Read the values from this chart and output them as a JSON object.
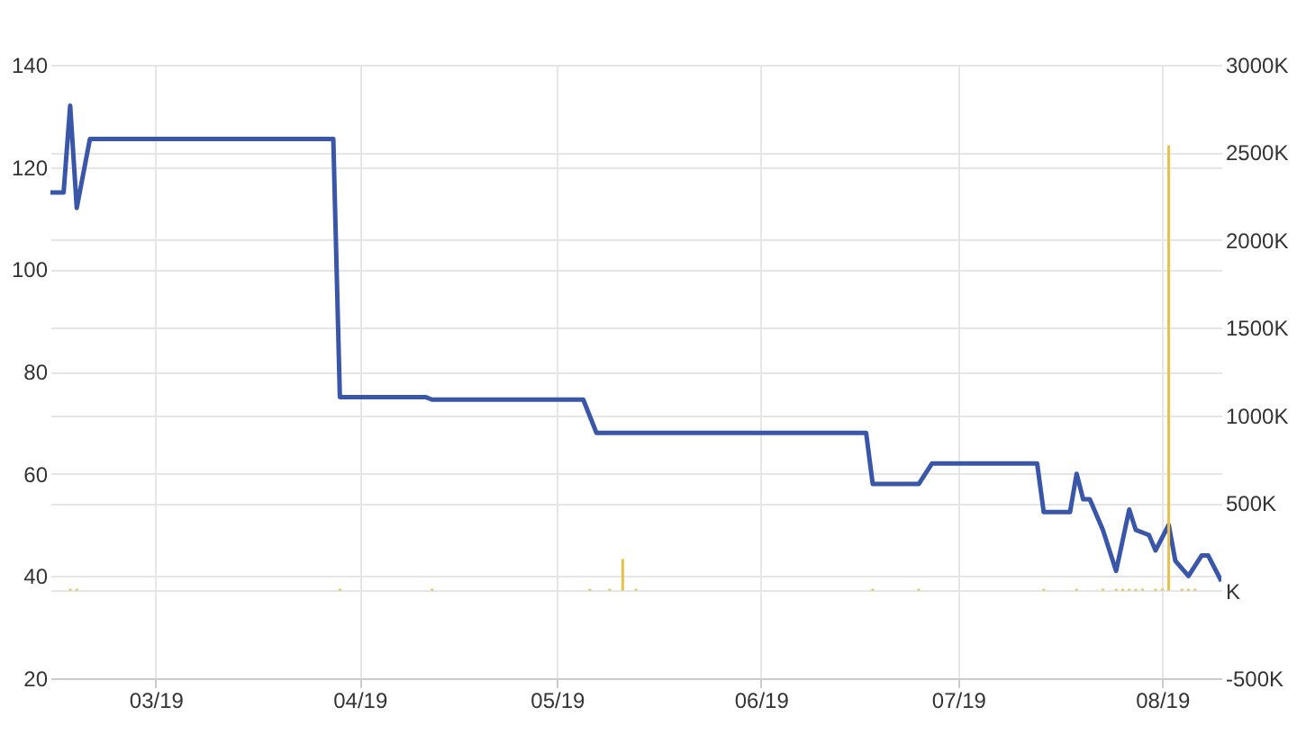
{
  "chart_data": {
    "type": "line",
    "xlim": [
      "2019-02-13",
      "2019-08-10"
    ],
    "xticks": [
      {
        "value": "2019-03-01",
        "label": "03/19"
      },
      {
        "value": "2019-04-01",
        "label": "04/19"
      },
      {
        "value": "2019-05-01",
        "label": "05/19"
      },
      {
        "value": "2019-06-01",
        "label": "06/19"
      },
      {
        "value": "2019-07-01",
        "label": "07/19"
      },
      {
        "value": "2019-08-01",
        "label": "08/19"
      }
    ],
    "ylim": [
      20,
      140
    ],
    "yticks": [
      20,
      40,
      60,
      80,
      100,
      120,
      140
    ],
    "y2lim": [
      -500,
      3000
    ],
    "y2ticks": [
      {
        "value": -500,
        "label": "-500K"
      },
      {
        "value": 0,
        "label": "K"
      },
      {
        "value": 500,
        "label": "500K"
      },
      {
        "value": 1000,
        "label": "1000K"
      },
      {
        "value": 1500,
        "label": "1500K"
      },
      {
        "value": 2000,
        "label": "2000K"
      },
      {
        "value": 2500,
        "label": "2500K"
      },
      {
        "value": 3000,
        "label": "3000K"
      }
    ],
    "grid": true,
    "legend": false,
    "series": [
      {
        "color": "#3a56a8",
        "x": [
          "2019-02-13",
          "2019-02-15",
          "2019-02-16",
          "2019-02-17",
          "2019-02-19",
          "2019-03-28",
          "2019-03-29",
          "2019-04-11",
          "2019-04-12",
          "2019-05-05",
          "2019-05-07",
          "2019-06-17",
          "2019-06-18",
          "2019-06-25",
          "2019-06-27",
          "2019-07-13",
          "2019-07-14",
          "2019-07-18",
          "2019-07-19",
          "2019-07-20",
          "2019-07-21",
          "2019-07-23",
          "2019-07-25",
          "2019-07-27",
          "2019-07-28",
          "2019-07-30",
          "2019-07-31",
          "2019-08-02",
          "2019-08-03",
          "2019-08-05",
          "2019-08-07",
          "2019-08-08",
          "2019-08-10"
        ],
        "values": [
          115,
          115,
          132,
          112,
          125.5,
          125.5,
          75,
          75,
          74.5,
          74.5,
          68,
          68,
          58,
          58,
          62,
          62,
          52.5,
          52.5,
          60,
          55,
          55,
          49,
          41,
          53,
          49,
          48,
          45,
          50,
          43,
          40,
          44,
          44,
          39
        ]
      },
      {
        "type": "bar",
        "axis": "y2",
        "color": "#e8c04a",
        "x": [
          "2019-02-16",
          "2019-02-17",
          "2019-03-29",
          "2019-04-12",
          "2019-05-06",
          "2019-05-09",
          "2019-05-11",
          "2019-05-13",
          "2019-06-18",
          "2019-06-25",
          "2019-07-14",
          "2019-07-19",
          "2019-07-23",
          "2019-07-25",
          "2019-07-26",
          "2019-07-27",
          "2019-07-28",
          "2019-07-29",
          "2019-07-31",
          "2019-08-01",
          "2019-08-02",
          "2019-08-04",
          "2019-08-05",
          "2019-08-06"
        ],
        "values": [
          10,
          10,
          10,
          10,
          10,
          10,
          180,
          10,
          10,
          10,
          10,
          10,
          10,
          10,
          10,
          10,
          10,
          10,
          10,
          10,
          2540,
          10,
          10,
          10
        ]
      }
    ]
  }
}
